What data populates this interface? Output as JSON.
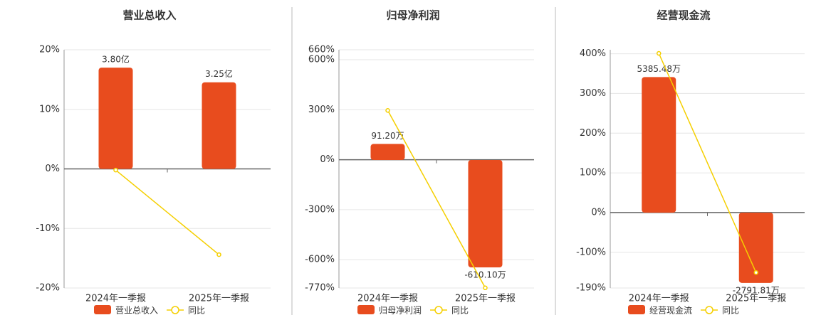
{
  "chart_data": [
    {
      "type": "bar",
      "title": "营业总收入",
      "categories": [
        "2024年一季报",
        "2025年一季报"
      ],
      "series": [
        {
          "name": "营业总收入",
          "type": "bar",
          "axis": "y2",
          "color": "#e84c1e",
          "values": [
            3.8,
            3.25
          ],
          "value_labels": [
            "3.80亿",
            "3.25亿"
          ]
        },
        {
          "name": "同比",
          "type": "line",
          "color": "#f5cf00",
          "values": [
            -0.2,
            -14.4
          ]
        }
      ],
      "ylim": [
        -20,
        20
      ],
      "yticks": [
        {
          "value": 20,
          "label": "20%"
        },
        {
          "value": 10,
          "label": "10%"
        },
        {
          "value": 0,
          "label": "0%"
        },
        {
          "value": -10,
          "label": "-10%"
        },
        {
          "value": -20,
          "label": "-20%"
        }
      ],
      "y2lim": [
        -4.47,
        4.47
      ],
      "grid": true
    },
    {
      "type": "bar",
      "title": "归母净利润",
      "categories": [
        "2024年一季报",
        "2025年一季报"
      ],
      "series": [
        {
          "name": "归母净利润",
          "type": "bar",
          "axis": "y2",
          "color": "#e84c1e",
          "values": [
            91.2,
            -610.1
          ],
          "value_labels": [
            "91.20万",
            "-610.10万"
          ]
        },
        {
          "name": "同比",
          "type": "line",
          "color": "#f5cf00",
          "values": [
            296,
            -769
          ]
        }
      ],
      "ylim": [
        -770,
        660
      ],
      "yticks": [
        {
          "value": 660,
          "label": "660%"
        },
        {
          "value": 600,
          "label": "600%"
        },
        {
          "value": 300,
          "label": "300%"
        },
        {
          "value": 0,
          "label": "0%"
        },
        {
          "value": -300,
          "label": "-300%"
        },
        {
          "value": -600,
          "label": "-600%"
        },
        {
          "value": -770,
          "label": "-770%"
        }
      ],
      "y2lim": [
        -727,
        626
      ],
      "grid": true
    },
    {
      "type": "bar",
      "title": "经营现金流",
      "categories": [
        "2024年一季报",
        "2025年一季报"
      ],
      "series": [
        {
          "name": "经营现金流",
          "type": "bar",
          "axis": "y2",
          "color": "#e84c1e",
          "values": [
            5385.48,
            -2791.81
          ],
          "value_labels": [
            "5385.48万",
            "-2791.81万"
          ]
        },
        {
          "name": "同比",
          "type": "line",
          "color": "#f5cf00",
          "values": [
            401,
            -151
          ]
        }
      ],
      "ylim": [
        -190,
        410
      ],
      "yticks": [
        {
          "value": 400,
          "label": "400%"
        },
        {
          "value": 300,
          "label": "300%"
        },
        {
          "value": 200,
          "label": "200%"
        },
        {
          "value": 100,
          "label": "100%"
        },
        {
          "value": 0,
          "label": "0%"
        },
        {
          "value": -100,
          "label": "-100%"
        },
        {
          "value": -190,
          "label": "-190%"
        }
      ],
      "y2lim": [
        -2994,
        6469
      ],
      "grid": true
    }
  ]
}
